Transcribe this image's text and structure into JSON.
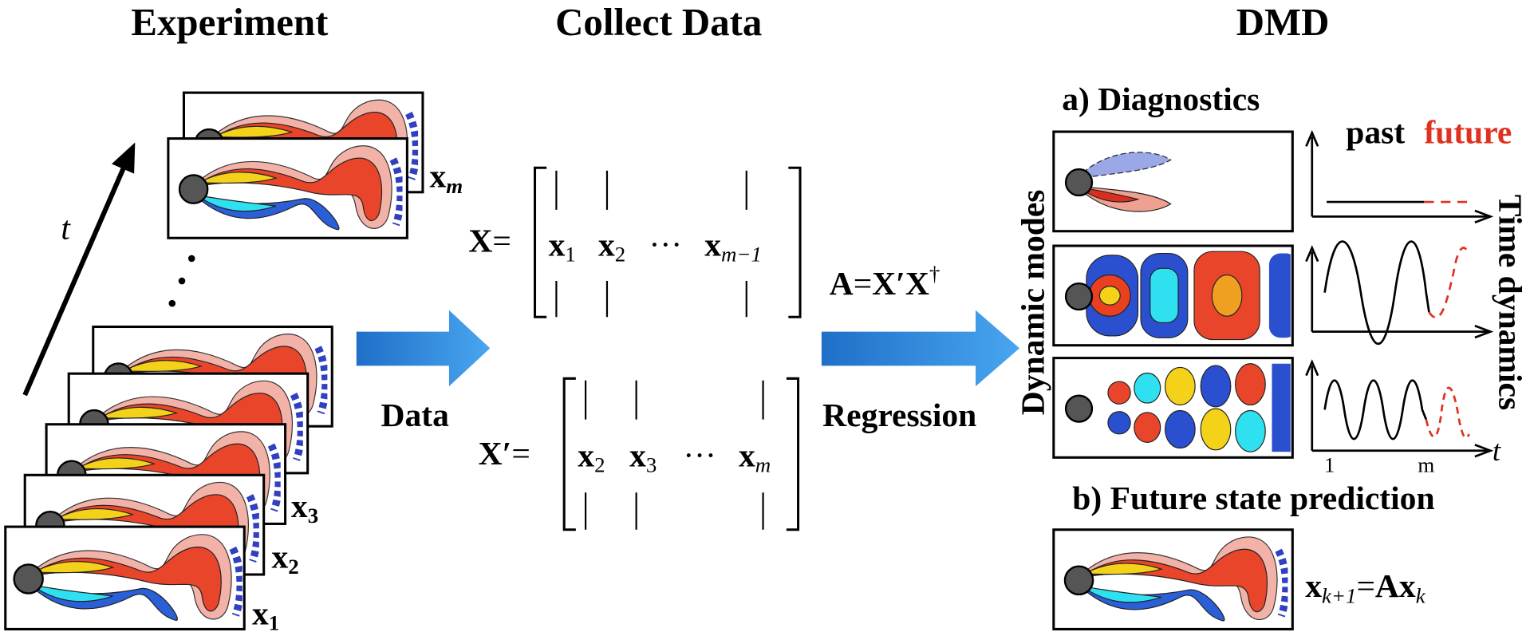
{
  "experiment": {
    "title": "Experiment",
    "axis_label": "t",
    "snapshots": [
      {
        "base": "x",
        "sub": "1"
      },
      {
        "base": "x",
        "sub": "2"
      },
      {
        "base": "x",
        "sub": "3"
      },
      {
        "base": "x",
        "sub": "m"
      }
    ]
  },
  "collect_data": {
    "title": "Collect Data",
    "arrow_label": "Data",
    "equals": "=",
    "ellipsis": "···",
    "matrices": [
      {
        "name": "X",
        "columns": [
          {
            "base": "x",
            "sub": "1"
          },
          {
            "base": "x",
            "sub": "2"
          },
          {
            "base": "x",
            "sub": "m−1"
          }
        ]
      },
      {
        "name": "X′",
        "columns": [
          {
            "base": "x",
            "sub": "2"
          },
          {
            "base": "x",
            "sub": "3"
          },
          {
            "base": "x",
            "sub": "m"
          }
        ]
      }
    ]
  },
  "regression": {
    "arrow_label": "Regression",
    "lhs": "A",
    "equals": "=",
    "rhs": "X′X",
    "sup": "†"
  },
  "dmd": {
    "title": "DMD",
    "diagnostics": {
      "title": "a) Diagnostics",
      "modes_label": "Dynamic modes",
      "dynamics_label": "Time dynamics",
      "past_label": "past",
      "future_label": "future",
      "time_axis_label": "t",
      "tick_start": "1",
      "tick_end": "m"
    },
    "prediction": {
      "title": "b) Future state prediction",
      "lhs_base": "x",
      "lhs_sub": "k+1",
      "equals": "=",
      "rhs_base": "Ax",
      "rhs_sub": "k"
    }
  }
}
